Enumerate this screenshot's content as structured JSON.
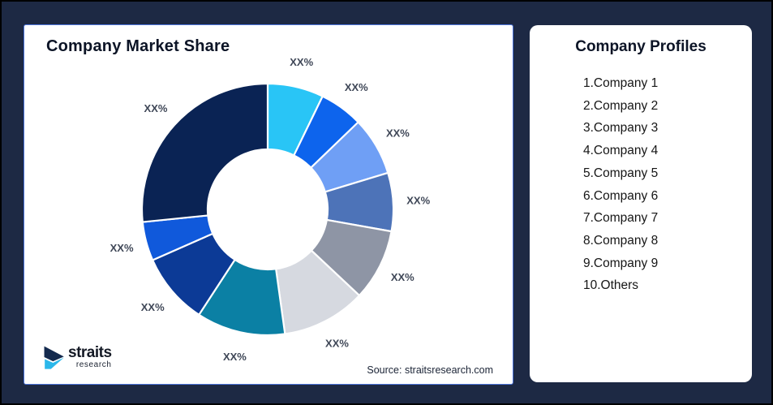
{
  "frame": {
    "background": "#1D2944",
    "border": "#000000"
  },
  "chart_card": {
    "title": "Company Market Share",
    "source": "Source: straitsresearch.com",
    "border_color": "#4C74DB"
  },
  "logo": {
    "name": "straits",
    "sub": "research",
    "navy": "#142A4E",
    "cyan": "#2BB7EA"
  },
  "profiles": {
    "title": "Company Profiles",
    "items": [
      "1.Company 1",
      "2.Company 2",
      "3.Company 3",
      "4.Company 4",
      "5.Company 5",
      "6.Company 6",
      "7.Company 7",
      "8.Company 8",
      "9.Company 9",
      "10.Others"
    ]
  },
  "chart_data": {
    "type": "pie",
    "variant": "donut",
    "title": "Company Market Share",
    "labels": [
      "Company 1",
      "Company 2",
      "Company 3",
      "Company 4",
      "Company 5",
      "Company 6",
      "Company 7",
      "Company 8",
      "Company 9",
      "Others"
    ],
    "slice_label": "XX%",
    "values_shown": [
      "XX%",
      "XX%",
      "XX%",
      "XX%",
      "XX%",
      "XX%",
      "XX%",
      "XX%",
      "XX%",
      "XX%"
    ],
    "values_pct_estimated": [
      7.2,
      5.6,
      7.5,
      7.5,
      9.2,
      10.8,
      11.4,
      9.2,
      5.0,
      26.6
    ],
    "colors": [
      "#29C5F6",
      "#0D64ED",
      "#6F9FF5",
      "#4D73B8",
      "#8E95A5",
      "#D6D9E0",
      "#0B80A4",
      "#0C3A96",
      "#1059DB",
      "#0A2354"
    ],
    "start_angle_deg": 0,
    "clockwise": true,
    "inner_radius_ratio": 0.48,
    "legend_position": "none",
    "source": "Source: straitsresearch.com"
  }
}
